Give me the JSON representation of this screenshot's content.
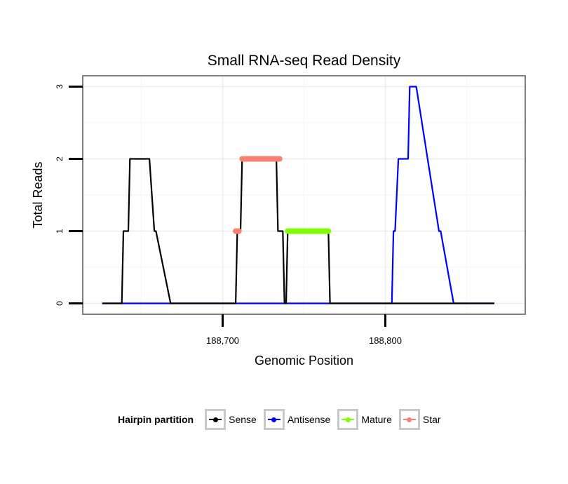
{
  "chart_data": {
    "type": "line",
    "title": "Small RNA-seq Read Density",
    "xlabel": "Genomic Position",
    "ylabel": "Total Reads",
    "xlim": [
      188614,
      188886
    ],
    "ylim": [
      -0.15,
      3.15
    ],
    "x_ticks": [
      188700,
      188800
    ],
    "x_tick_labels": [
      "188,700",
      "188,800"
    ],
    "y_ticks": [
      0,
      1,
      2,
      3
    ],
    "y_tick_labels": [
      "0",
      "1",
      "2",
      "3"
    ],
    "grid": true,
    "legend_position": "bottom",
    "legend_title": "Hairpin partition",
    "series": [
      {
        "name": "Sense",
        "color": "#000000",
        "x": [
          188626,
          188638,
          188639,
          188642,
          188643,
          188654,
          188655,
          188658,
          188659,
          188668,
          188669,
          188699,
          188708,
          188709,
          188711,
          188712,
          188733,
          188734,
          188737,
          188738,
          188739,
          188740,
          188765,
          188766,
          188867
        ],
        "y": [
          0,
          0,
          1,
          1,
          2,
          2,
          2,
          1,
          1,
          0,
          0,
          0,
          0,
          1,
          1,
          2,
          2,
          1,
          1,
          0,
          0,
          1,
          1,
          0,
          0
        ]
      },
      {
        "name": "Antisense",
        "color": "#0000ff",
        "x": [
          188626,
          188804,
          188805,
          188806,
          188808,
          188814,
          188815,
          188818,
          188819,
          188833,
          188834,
          188842,
          188843,
          188867
        ],
        "y": [
          0,
          0,
          1,
          1,
          2,
          2,
          3,
          3,
          3,
          1,
          1,
          0,
          0,
          0
        ]
      },
      {
        "name": "Mature",
        "color": "#7fff00",
        "x": [
          188740,
          188765
        ],
        "y": [
          1,
          1
        ]
      },
      {
        "name": "Star",
        "color": "#fa8072",
        "x": [
          188708,
          188710,
          188711,
          188735
        ],
        "y": [
          1,
          1,
          2,
          2
        ]
      }
    ],
    "point_series": [
      {
        "name": "Mature",
        "x_from": 188740,
        "x_to": 188765,
        "y": 1
      },
      {
        "name": "Star",
        "x_from": 188712,
        "x_to": 188735,
        "y": 2
      },
      {
        "name": "Star",
        "x_from": 188708,
        "x_to": 188710,
        "y": 1
      }
    ]
  },
  "legend": {
    "title": "Hairpin partition",
    "items": [
      {
        "label": "Sense",
        "color": "#000000"
      },
      {
        "label": "Antisense",
        "color": "#0000ff"
      },
      {
        "label": "Mature",
        "color": "#7fff00"
      },
      {
        "label": "Star",
        "color": "#fa8072"
      }
    ]
  }
}
